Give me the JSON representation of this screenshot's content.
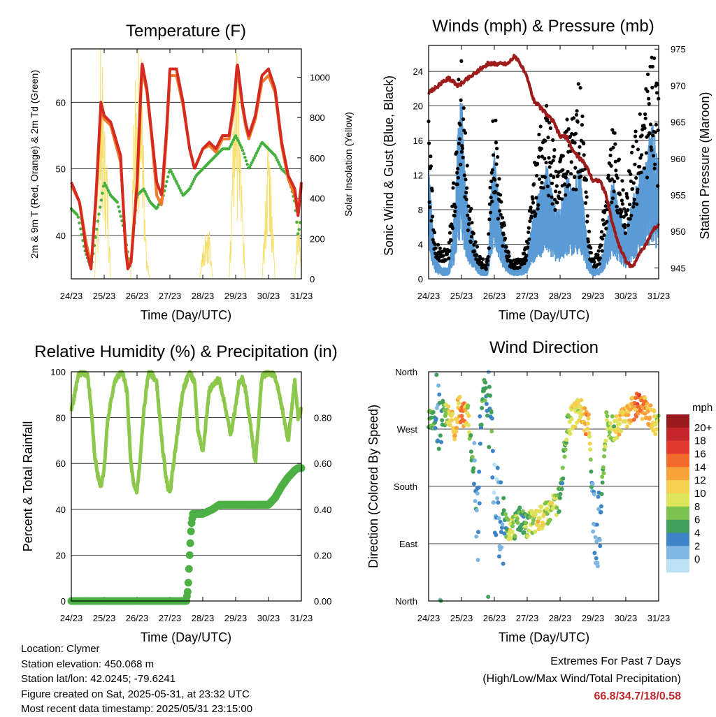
{
  "info": {
    "location": "Location: Clymer",
    "elevation": "Station elevation: 450.068 m",
    "latlon": "Station lat/lon: 42.0245; -79.6241",
    "created": "Figure created on Sat, 2025-05-31, at 23:32 UTC",
    "recent": "Most recent data timestamp: 2025/05/31 23:15:00"
  },
  "extremes": {
    "title": "Extremes For Past 7 Days",
    "subtitle": "(High/Low/Max Wind/Total Precipitation)",
    "values": "66.8/34.7/18/0.58"
  },
  "colors": {
    "temp_2m": "#d42a20",
    "temp_9m": "#f07a2a",
    "dewpoint": "#45b040",
    "insolation": "#f8e070",
    "wind": "#5b9bd5",
    "gust": "#000000",
    "pressure": "#9e1b1b",
    "rh": "#8cc84b",
    "precip": "#4cb044"
  },
  "chart_data": [
    {
      "type": "line",
      "title": "Temperature (F)",
      "xlabel": "Time (Day/UTC)",
      "ylabel": "2m & 9m T (Red, Orange) & 2m Td (Green)",
      "y2label": "Solar Insolation (Yellow)",
      "x_ticks": [
        "24/23",
        "25/23",
        "26/23",
        "27/23",
        "28/23",
        "29/23",
        "30/23",
        "31/23"
      ],
      "xlim_days": [
        0,
        7
      ],
      "ylim": [
        33.5,
        68
      ],
      "y_ticks": [
        40,
        50,
        60
      ],
      "y2lim": [
        0,
        1140
      ],
      "y2_ticks": [
        0,
        200,
        400,
        600,
        800,
        1000
      ],
      "series": [
        {
          "name": "2m T",
          "x": [
            0,
            0.25,
            0.45,
            0.6,
            0.75,
            0.9,
            1.0,
            1.2,
            1.5,
            1.65,
            1.72,
            1.82,
            2.0,
            2.15,
            2.3,
            2.45,
            2.6,
            2.75,
            2.9,
            3.0,
            3.2,
            3.4,
            3.6,
            3.75,
            4.0,
            4.2,
            4.4,
            4.6,
            4.8,
            4.95,
            5.05,
            5.2,
            5.3,
            5.4,
            5.6,
            5.8,
            6.0,
            6.2,
            6.4,
            6.6,
            6.8,
            6.9,
            7.0
          ],
          "values": [
            48,
            45,
            38,
            35,
            46,
            60,
            58,
            57,
            52,
            38,
            35,
            36,
            48,
            66,
            62,
            55,
            48,
            46,
            56,
            65,
            65,
            60,
            53,
            50,
            53,
            54,
            53,
            55,
            55,
            60,
            66,
            60,
            57,
            55,
            58,
            64,
            65,
            62,
            54,
            49,
            47,
            43,
            48
          ]
        },
        {
          "name": "9m T",
          "x": [
            0,
            0.25,
            0.45,
            0.6,
            0.75,
            0.9,
            1.0,
            1.2,
            1.5,
            1.65,
            1.72,
            1.82,
            2.0,
            2.15,
            2.3,
            2.45,
            2.6,
            2.75,
            2.9,
            3.0,
            3.2,
            3.4,
            3.6,
            3.75,
            4.0,
            4.2,
            4.4,
            4.6,
            4.8,
            4.95,
            5.05,
            5.2,
            5.3,
            5.4,
            5.6,
            5.8,
            6.0,
            6.2,
            6.4,
            6.6,
            6.8,
            6.9,
            7.0
          ],
          "values": [
            47.5,
            45,
            39,
            35.5,
            45,
            59,
            57.5,
            56.5,
            51,
            39,
            35.5,
            36.5,
            47,
            65,
            61.5,
            54.5,
            46,
            44.5,
            55,
            64,
            64,
            59.5,
            53,
            50,
            53,
            53.5,
            52.5,
            54.5,
            54.5,
            59,
            65,
            59.5,
            56.5,
            54.5,
            57.5,
            63,
            64,
            61.5,
            53.5,
            48.5,
            46,
            43,
            47.5
          ]
        },
        {
          "name": "2m Td",
          "x": [
            0,
            0.2,
            0.4,
            0.6,
            0.8,
            1.0,
            1.2,
            1.4,
            1.6,
            1.8,
            2.0,
            2.2,
            2.4,
            2.6,
            2.8,
            3.0,
            3.2,
            3.4,
            3.6,
            3.8,
            4.0,
            4.2,
            4.4,
            4.6,
            4.8,
            5.0,
            5.2,
            5.4,
            5.6,
            5.8,
            6.0,
            6.2,
            6.4,
            6.6,
            6.8,
            6.9,
            7.0
          ],
          "values": [
            44,
            43,
            38,
            35,
            42,
            48,
            46,
            45,
            41,
            35,
            46,
            47,
            45,
            44,
            46,
            50,
            48,
            46,
            47,
            49,
            50,
            51,
            52,
            53,
            53,
            55,
            53,
            50,
            52,
            54,
            53,
            52,
            50,
            49,
            45,
            40,
            43
          ]
        },
        {
          "name": "Solar Insolation",
          "axis": "y2",
          "x": [
            0,
            0.1,
            0.2,
            0.3,
            0.4,
            0.5,
            0.6,
            0.7,
            0.8,
            0.9,
            1.0,
            1.1,
            1.2,
            1.3,
            1.4,
            1.5,
            1.6,
            1.7,
            1.8,
            1.9,
            2.0,
            2.1,
            2.2,
            2.3,
            2.4,
            2.5,
            2.6,
            2.7,
            2.8,
            2.9,
            3.0,
            3.1,
            3.2,
            3.3,
            3.4,
            3.5,
            3.6,
            3.7,
            3.8,
            3.9,
            4.0,
            4.1,
            4.2,
            4.3,
            4.4,
            4.5,
            4.6,
            4.7,
            4.8,
            4.9,
            5.0,
            5.1,
            5.2,
            5.3,
            5.4,
            5.5,
            5.6,
            5.7,
            5.8,
            5.9,
            6.0,
            6.1,
            6.2,
            6.3,
            6.4,
            6.5,
            6.6,
            6.7,
            6.8,
            6.9,
            7.0
          ],
          "values": [
            0,
            0,
            0,
            0,
            0,
            0,
            0,
            0,
            300,
            1060,
            700,
            500,
            0,
            0,
            0,
            0,
            0,
            0,
            0,
            700,
            950,
            1140,
            600,
            100,
            0,
            0,
            0,
            0,
            0,
            0,
            0,
            0,
            0,
            0,
            0,
            0,
            0,
            0,
            0,
            0,
            150,
            250,
            200,
            0,
            0,
            0,
            0,
            0,
            0,
            500,
            1050,
            850,
            350,
            0,
            0,
            0,
            0,
            0,
            0,
            300,
            700,
            400,
            0,
            0,
            0,
            0,
            0,
            0,
            0,
            300,
            100
          ]
        }
      ]
    },
    {
      "type": "scatter",
      "title": "Winds (mph) & Pressure (mb)",
      "xlabel": "Time (Day/UTC)",
      "ylabel": "Sonic Wind & Gust (Blue, Black)",
      "y2label": "Station Pressure (Maroon)",
      "x_ticks": [
        "24/23",
        "25/23",
        "26/23",
        "27/23",
        "28/23",
        "29/23",
        "30/23",
        "31/23"
      ],
      "xlim_days": [
        0,
        7
      ],
      "ylim": [
        0,
        27
      ],
      "y_ticks": [
        0,
        4,
        8,
        12,
        16,
        20,
        24
      ],
      "y2lim": [
        943.5,
        975.5
      ],
      "y2_ticks": [
        945,
        950,
        955,
        960,
        965,
        970,
        975
      ],
      "series": [
        {
          "name": "Wind",
          "x": [
            0,
            0.1,
            0.2,
            0.4,
            0.6,
            0.8,
            0.9,
            1.0,
            1.1,
            1.2,
            1.4,
            1.6,
            1.8,
            1.9,
            2.0,
            2.2,
            2.4,
            2.6,
            2.8,
            3.0,
            3.2,
            3.4,
            3.6,
            3.8,
            4.0,
            4.2,
            4.4,
            4.6,
            4.8,
            4.9,
            5.0,
            5.2,
            5.4,
            5.6,
            5.8,
            6.0,
            6.2,
            6.4,
            6.6,
            6.8,
            6.9,
            7.0
          ],
          "values": [
            10,
            6,
            2,
            1,
            1,
            6,
            14,
            16,
            10,
            6,
            3,
            1,
            1,
            8,
            11,
            5,
            2,
            1,
            1,
            2,
            6,
            8,
            10,
            7,
            6,
            9,
            8,
            10,
            4,
            2,
            1,
            1,
            4,
            9,
            6,
            4,
            7,
            9,
            10,
            14,
            12,
            10
          ]
        },
        {
          "name": "Gust",
          "x": [
            0,
            0.1,
            0.2,
            0.4,
            0.6,
            0.8,
            0.9,
            1.0,
            1.1,
            1.2,
            1.4,
            1.6,
            1.8,
            1.9,
            2.0,
            2.2,
            2.4,
            2.6,
            2.8,
            3.0,
            3.2,
            3.4,
            3.6,
            3.8,
            4.0,
            4.2,
            4.4,
            4.6,
            4.8,
            4.9,
            5.0,
            5.2,
            5.4,
            5.6,
            5.8,
            6.0,
            6.2,
            6.4,
            6.6,
            6.8,
            6.9,
            7.0
          ],
          "values": [
            17,
            10,
            4,
            3,
            3,
            12,
            20,
            22,
            17,
            10,
            4,
            2,
            2,
            14,
            18,
            8,
            3,
            2,
            2,
            4,
            12,
            16,
            18,
            14,
            12,
            17,
            16,
            21,
            10,
            4,
            2,
            3,
            10,
            16,
            12,
            8,
            14,
            16,
            20,
            24,
            22,
            18
          ]
        },
        {
          "name": "Pressure",
          "axis": "y2",
          "x": [
            0,
            0.3,
            0.6,
            0.9,
            1.2,
            1.5,
            1.8,
            2.1,
            2.4,
            2.6,
            2.8,
            3.0,
            3.2,
            3.4,
            3.6,
            3.8,
            4.0,
            4.2,
            4.4,
            4.6,
            4.8,
            5.0,
            5.2,
            5.4,
            5.6,
            5.8,
            6.0,
            6.2,
            6.4,
            6.6,
            6.8,
            7.0
          ],
          "values": [
            969,
            970,
            971,
            970,
            971,
            972,
            973,
            973,
            973,
            974,
            973,
            971,
            968,
            967,
            966,
            965,
            963,
            963,
            961,
            960,
            959,
            957,
            957,
            955,
            951,
            948,
            946,
            945,
            947,
            948,
            950,
            951
          ]
        }
      ]
    },
    {
      "type": "line",
      "title": "Relative Humidity (%) & Precipitation (in)",
      "xlabel": "Time (Day/UTC)",
      "ylabel": "Percent & Total Rainfall",
      "x_ticks": [
        "24/23",
        "25/23",
        "26/23",
        "27/23",
        "28/23",
        "29/23",
        "30/23",
        "31/23"
      ],
      "xlim_days": [
        0,
        7
      ],
      "ylim": [
        0,
        100
      ],
      "y_ticks": [
        0,
        20,
        40,
        60,
        80,
        100
      ],
      "y2lim": [
        0,
        1
      ],
      "y2_ticks": [
        "0.00",
        "0.20",
        "0.40",
        "0.60",
        "0.80"
      ],
      "series": [
        {
          "name": "RH",
          "x": [
            0,
            0.1,
            0.2,
            0.35,
            0.5,
            0.6,
            0.7,
            0.8,
            0.9,
            1.0,
            1.1,
            1.3,
            1.5,
            1.6,
            1.7,
            1.8,
            1.9,
            2.0,
            2.1,
            2.2,
            2.35,
            2.5,
            2.6,
            2.75,
            2.9,
            3.0,
            3.2,
            3.4,
            3.6,
            3.75,
            3.85,
            4.0,
            4.2,
            4.5,
            4.7,
            4.85,
            5.0,
            5.1,
            5.2,
            5.3,
            5.5,
            5.6,
            5.8,
            6.0,
            6.2,
            6.4,
            6.6,
            6.8,
            6.9,
            7.0
          ],
          "values": [
            83,
            90,
            98,
            100,
            98,
            85,
            65,
            55,
            50,
            58,
            78,
            95,
            100,
            98,
            90,
            62,
            50,
            48,
            62,
            82,
            100,
            98,
            95,
            70,
            52,
            47,
            70,
            92,
            100,
            95,
            75,
            65,
            92,
            97,
            84,
            72,
            85,
            95,
            97,
            92,
            72,
            60,
            98,
            100,
            98,
            85,
            70,
            96,
            80,
            84
          ]
        },
        {
          "name": "Precipitation",
          "x": [
            0,
            3.5,
            3.55,
            3.6,
            3.65,
            3.7,
            3.8,
            4.0,
            4.3,
            4.5,
            5.0,
            5.5,
            6.0,
            6.2,
            6.4,
            6.6,
            6.8,
            6.9,
            7.0
          ],
          "values": [
            0,
            0,
            0.05,
            0.2,
            0.33,
            0.38,
            0.38,
            0.38,
            0.4,
            0.42,
            0.42,
            0.42,
            0.42,
            0.45,
            0.5,
            0.54,
            0.57,
            0.58,
            0.58
          ]
        }
      ]
    },
    {
      "type": "scatter",
      "title": "Wind Direction",
      "xlabel": "Time (Day/UTC)",
      "ylabel": "Direction (Colored By Speed)",
      "x_ticks": [
        "24/23",
        "25/23",
        "26/23",
        "27/23",
        "28/23",
        "29/23",
        "30/23",
        "31/23"
      ],
      "xlim_days": [
        0,
        7
      ],
      "ylim": [
        0,
        360
      ],
      "y_tick_labels": [
        "North",
        "East",
        "South",
        "West",
        "North"
      ],
      "legend_title": "mph",
      "legend_labels": [
        "20+",
        "18",
        "16",
        "14",
        "12",
        "10",
        "8",
        "6",
        "4",
        "2",
        "0"
      ],
      "legend_colors": [
        "#9a1b1e",
        "#c4262a",
        "#e23a2e",
        "#f26a2c",
        "#f7a23a",
        "#f5d04e",
        "#dde45a",
        "#7cc24f",
        "#3f9f5b",
        "#3d85c6",
        "#7fb6e2",
        "#bde1f5"
      ],
      "series": [
        {
          "name": "Direction",
          "x": [
            0.1,
            0.3,
            0.6,
            0.8,
            0.9,
            1.0,
            1.2,
            1.5,
            1.6,
            1.7,
            1.8,
            1.9,
            2.0,
            2.2,
            2.5,
            2.8,
            3.0,
            3.2,
            3.4,
            3.6,
            3.8,
            4.0,
            4.2,
            4.4,
            4.6,
            4.8,
            4.9,
            5.0,
            5.2,
            5.4,
            5.6,
            5.8,
            6.0,
            6.2,
            6.4,
            6.6,
            6.8,
            6.9
          ],
          "values": [
            280,
            300,
            290,
            270,
            310,
            290,
            300,
            130,
            290,
            340,
            300,
            310,
            150,
            130,
            110,
            130,
            120,
            125,
            130,
            140,
            150,
            160,
            270,
            290,
            300,
            280,
            270,
            140,
            110,
            280,
            270,
            275,
            290,
            300,
            310,
            300,
            290,
            280
          ],
          "speed": [
            8,
            3,
            10,
            14,
            12,
            16,
            10,
            2,
            6,
            8,
            4,
            6,
            2,
            3,
            10,
            5,
            8,
            10,
            12,
            9,
            10,
            6,
            8,
            12,
            10,
            14,
            12,
            2,
            4,
            10,
            8,
            12,
            12,
            14,
            16,
            14,
            12,
            10
          ]
        }
      ]
    }
  ]
}
